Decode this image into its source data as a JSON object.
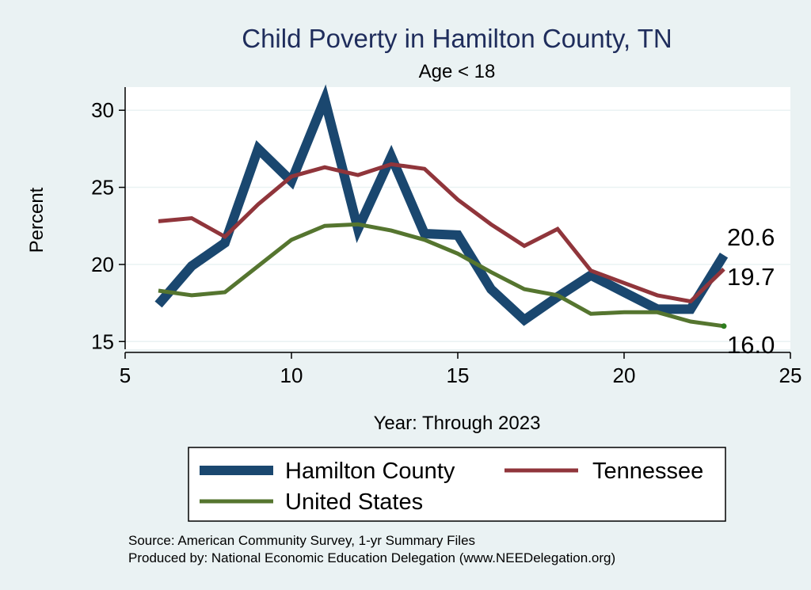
{
  "chart_data": {
    "type": "line",
    "title": "Child Poverty in Hamilton County, TN",
    "subtitle": "Age < 18",
    "xlabel": "Year: Through 2023",
    "ylabel": "Percent",
    "xlim": [
      5,
      25
    ],
    "ylim": [
      14.5,
      31.5
    ],
    "xticks": [
      5,
      10,
      15,
      20,
      25
    ],
    "yticks": [
      15,
      20,
      25,
      30
    ],
    "grid": true,
    "legend_position": "bottom",
    "series": [
      {
        "name": "Hamilton County",
        "color": "#1a476f",
        "x": [
          6,
          7,
          8,
          9,
          10,
          11,
          12,
          13,
          14,
          15,
          16,
          17,
          18,
          19,
          20,
          21,
          22,
          23
        ],
        "values": [
          17.4,
          19.9,
          21.4,
          27.5,
          25.4,
          30.7,
          22.3,
          27.0,
          22.0,
          21.9,
          18.4,
          16.4,
          17.9,
          19.3,
          18.2,
          17.1,
          17.1,
          20.6
        ],
        "end_label": "20.6"
      },
      {
        "name": "Tennessee",
        "color": "#90353b",
        "x": [
          6,
          7,
          8,
          9,
          10,
          11,
          12,
          13,
          14,
          15,
          16,
          17,
          18,
          19,
          20,
          21,
          22,
          23
        ],
        "values": [
          22.8,
          23.0,
          21.8,
          23.9,
          25.7,
          26.3,
          25.8,
          26.5,
          26.2,
          24.2,
          22.6,
          21.2,
          22.3,
          19.6,
          18.8,
          18.0,
          17.6,
          19.7
        ],
        "end_label": "19.7"
      },
      {
        "name": "United States",
        "color": "#55752f",
        "x": [
          6,
          7,
          8,
          9,
          10,
          11,
          12,
          13,
          14,
          15,
          16,
          17,
          18,
          19,
          20,
          21,
          22,
          23
        ],
        "values": [
          18.3,
          18.0,
          18.2,
          19.9,
          21.6,
          22.5,
          22.6,
          22.2,
          21.6,
          20.7,
          19.5,
          18.4,
          18.0,
          16.8,
          16.9,
          16.9,
          16.3,
          16.0
        ],
        "end_label": "16.0"
      }
    ],
    "notes": [
      "Source: American Community Survey, 1-yr Summary Files",
      "Produced by: National Economic Education Delegation (www.NEEDelegation.org)"
    ]
  }
}
